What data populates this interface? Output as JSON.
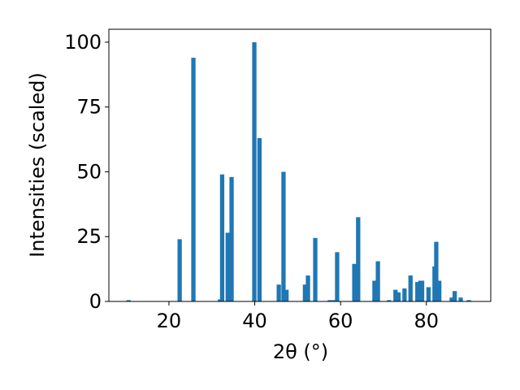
{
  "chart_data": {
    "type": "bar",
    "title": "",
    "xlabel": "2θ (°)",
    "ylabel": "Intensities (scaled)",
    "xlim": [
      6,
      95
    ],
    "ylim": [
      0,
      105
    ],
    "xticks": [
      20,
      40,
      60,
      80
    ],
    "yticks": [
      0,
      25,
      50,
      75,
      100
    ],
    "grid": false,
    "bar_color": "#1f77b4",
    "x": [
      10.6,
      22.5,
      25.7,
      31.9,
      32.4,
      33.7,
      34.6,
      39.9,
      41.1,
      45.6,
      46.7,
      47.4,
      51.7,
      52.4,
      54.1,
      57.5,
      58.5,
      59.2,
      63.2,
      64.1,
      67.9,
      68.7,
      71.3,
      72.8,
      73.5,
      74.9,
      76.3,
      77.9,
      78.6,
      79.0,
      80.5,
      81.9,
      82.3,
      83.0,
      85.9,
      86.6,
      88.0,
      89.9
    ],
    "values": [
      0.5,
      24,
      94,
      0.8,
      49,
      26.5,
      48,
      100,
      63,
      6.5,
      50,
      4.5,
      6.5,
      10,
      24.5,
      0.5,
      0.5,
      19,
      14.5,
      32.5,
      8,
      15.5,
      0.5,
      4.5,
      3.5,
      5,
      10,
      7.5,
      8,
      8,
      5.5,
      13.5,
      23,
      8,
      1.5,
      4,
      1.5,
      0.5
    ]
  }
}
